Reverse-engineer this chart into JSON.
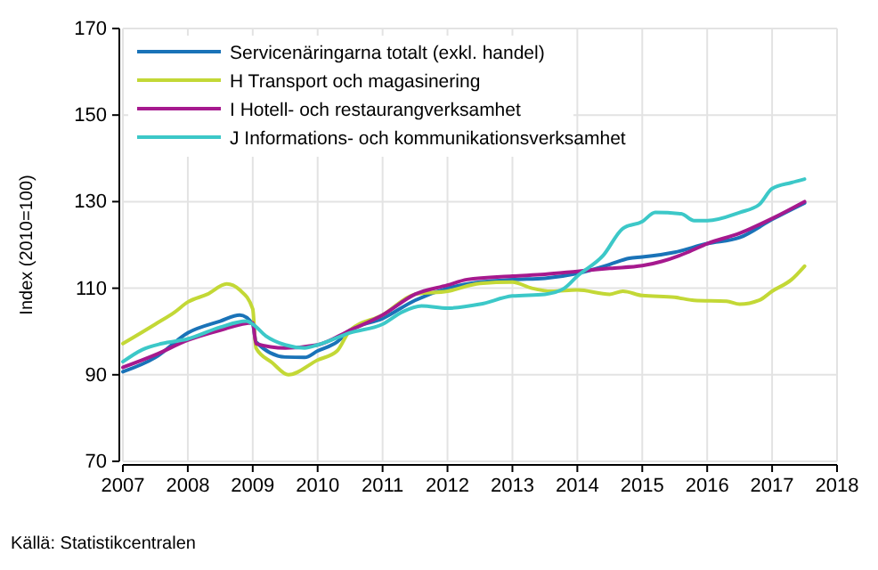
{
  "chart_data": {
    "type": "line",
    "ylabel": "Index (2010=100)",
    "annotations": [
      "Källä: Statistikcentralen"
    ],
    "xlim": [
      2007,
      2018
    ],
    "xticks": [
      2007,
      2008,
      2009,
      2010,
      2011,
      2012,
      2013,
      2014,
      2015,
      2016,
      2017,
      2018
    ],
    "ylim": [
      70,
      170
    ],
    "yticks": [
      70,
      90,
      110,
      130,
      150,
      170
    ],
    "grid": true,
    "legend": "top left",
    "line_style": "solid",
    "marker": "none",
    "series": [
      {
        "name": "Servicenäringarna totalt (exkl. handel)",
        "color": "#1a73b8",
        "x": [
          2007,
          2007.5,
          2008,
          2008.5,
          2008.8,
          2009,
          2009.05,
          2009.5,
          2009.8,
          2010,
          2010.3,
          2010.5,
          2011,
          2011.5,
          2012,
          2012.5,
          2013,
          2013.5,
          2014,
          2014.5,
          2014.8,
          2015,
          2015.5,
          2016,
          2016.5,
          2017,
          2017.5
        ],
        "values": [
          90.7,
          94,
          99.7,
          102.4,
          103.8,
          101.7,
          97.6,
          94.1,
          94,
          95.5,
          97.6,
          100.3,
          103,
          107.2,
          110,
          111.4,
          112,
          112.3,
          113.4,
          115.5,
          116.9,
          117.2,
          118.3,
          120.3,
          121.7,
          125.9,
          129.7
        ]
      },
      {
        "name": "H Transport och magasinering",
        "color": "#c3d836",
        "x": [
          2007,
          2007.5,
          2007.8,
          2008,
          2008.3,
          2008.6,
          2008.8,
          2009,
          2009.05,
          2009.3,
          2009.55,
          2010,
          2010.3,
          2010.5,
          2011,
          2011.5,
          2012,
          2012.5,
          2013,
          2013.3,
          2013.6,
          2014,
          2014.5,
          2014.7,
          2015,
          2015.5,
          2015.8,
          2016.3,
          2016.5,
          2016.8,
          2017,
          2017.3,
          2017.5
        ],
        "values": [
          97.2,
          101.7,
          104.5,
          106.8,
          108.6,
          111,
          109.6,
          105.2,
          96.2,
          92.8,
          90,
          93.4,
          95.5,
          100.3,
          103.8,
          108.6,
          109.3,
          111.1,
          111.4,
          110,
          109.3,
          109.6,
          108.6,
          109.3,
          108.3,
          107.9,
          107.2,
          107,
          106.3,
          107.2,
          109.3,
          112,
          115.1
        ]
      },
      {
        "name": "I Hotell- och restaurangverksamhet",
        "color": "#a6198e",
        "x": [
          2007,
          2007.5,
          2008,
          2008.5,
          2009,
          2009.05,
          2009.5,
          2010,
          2010.5,
          2011,
          2011.5,
          2012,
          2012.3,
          2013,
          2013.5,
          2014,
          2014.5,
          2015,
          2015.3,
          2015.7,
          2016,
          2016.5,
          2017,
          2017.5
        ],
        "values": [
          91.7,
          94.6,
          98,
          100.3,
          102,
          97.2,
          96.2,
          96.9,
          100.3,
          103.8,
          108.6,
          110.7,
          112,
          112.8,
          113.2,
          113.9,
          114.6,
          115.2,
          116.2,
          118.3,
          120.3,
          122.7,
          126.1,
          130
        ]
      },
      {
        "name": "J Informations- och kommunikationsverksamhet",
        "color": "#3cc8c8",
        "x": [
          2007,
          2007.3,
          2007.6,
          2008,
          2008.5,
          2008.9,
          2009,
          2009.2,
          2009.5,
          2009.8,
          2010,
          2010.5,
          2011,
          2011.3,
          2011.6,
          2012,
          2012.5,
          2013,
          2013.5,
          2013.8,
          2014,
          2014.4,
          2014.7,
          2015,
          2015.2,
          2015.6,
          2015.8,
          2016,
          2016.5,
          2016.8,
          2017,
          2017.3,
          2017.5
        ],
        "values": [
          93,
          95.8,
          97.2,
          98.3,
          101,
          102.4,
          101.7,
          99,
          96.9,
          96.2,
          96.9,
          99.7,
          101.7,
          104.5,
          105.9,
          105.4,
          106.3,
          108.2,
          108.6,
          110,
          112.8,
          117.6,
          123.8,
          125.4,
          127.5,
          127.2,
          125.6,
          125.6,
          127.5,
          129.3,
          133,
          134.4,
          135.2
        ]
      }
    ]
  }
}
